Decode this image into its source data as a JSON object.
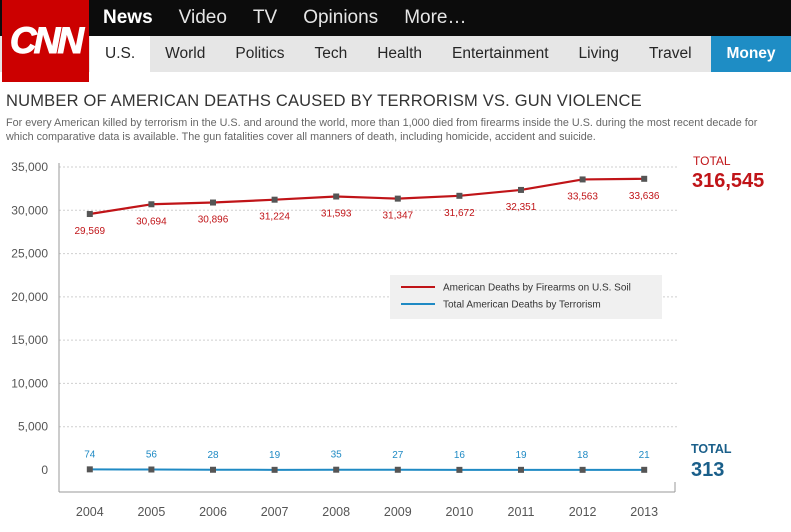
{
  "logo": {
    "text": "CNN"
  },
  "nav": {
    "top": [
      "News",
      "Video",
      "TV",
      "Opinions",
      "More…"
    ],
    "sub": [
      "U.S.",
      "World",
      "Politics",
      "Tech",
      "Health",
      "Entertainment",
      "Living",
      "Travel"
    ],
    "money": "Money"
  },
  "article": {
    "title": "NUMBER OF AMERICAN DEATHS CAUSED BY TERRORISM VS. GUN VIOLENCE",
    "subtitle": "For every American killed by terrorism in the U.S. and around the world, more than 1,000 died from firearms inside the U.S. during the most recent decade for which comparative data is available. The gun fatalities cover all manners of death, including homicide, accident and suicide."
  },
  "colors": {
    "firearms": "#c01418",
    "terrorism": "#1f8ac4",
    "total_terror_text": "#1a5f8a"
  },
  "chart_data": {
    "type": "line",
    "title": "NUMBER OF AMERICAN DEATHS CAUSED BY TERRORISM VS. GUN VIOLENCE",
    "x": [
      "2004",
      "2005",
      "2006",
      "2007",
      "2008",
      "2009",
      "2010",
      "2011",
      "2012",
      "2013"
    ],
    "yticks": [
      "0",
      "5,000",
      "10,000",
      "15,000",
      "20,000",
      "25,000",
      "30,000",
      "35,000"
    ],
    "ylim": [
      0,
      35000
    ],
    "grid": true,
    "legend_position": "center-right",
    "series": [
      {
        "name": "American Deaths by Firearms on U.S. Soil",
        "values": [
          29569,
          30694,
          30896,
          31224,
          31593,
          31347,
          31672,
          32351,
          33563,
          33636
        ],
        "labels": [
          "29,569",
          "30,694",
          "30,896",
          "31,224",
          "31,593",
          "31,347",
          "31,672",
          "32,351",
          "33,563",
          "33,636"
        ],
        "total_label": "TOTAL",
        "total_value": "316,545"
      },
      {
        "name": "Total American Deaths by Terrorism",
        "values": [
          74,
          56,
          28,
          19,
          35,
          27,
          16,
          19,
          18,
          21
        ],
        "labels": [
          "74",
          "56",
          "28",
          "19",
          "35",
          "27",
          "16",
          "19",
          "18",
          "21"
        ],
        "total_label": "TOTAL",
        "total_value": "313"
      }
    ]
  }
}
